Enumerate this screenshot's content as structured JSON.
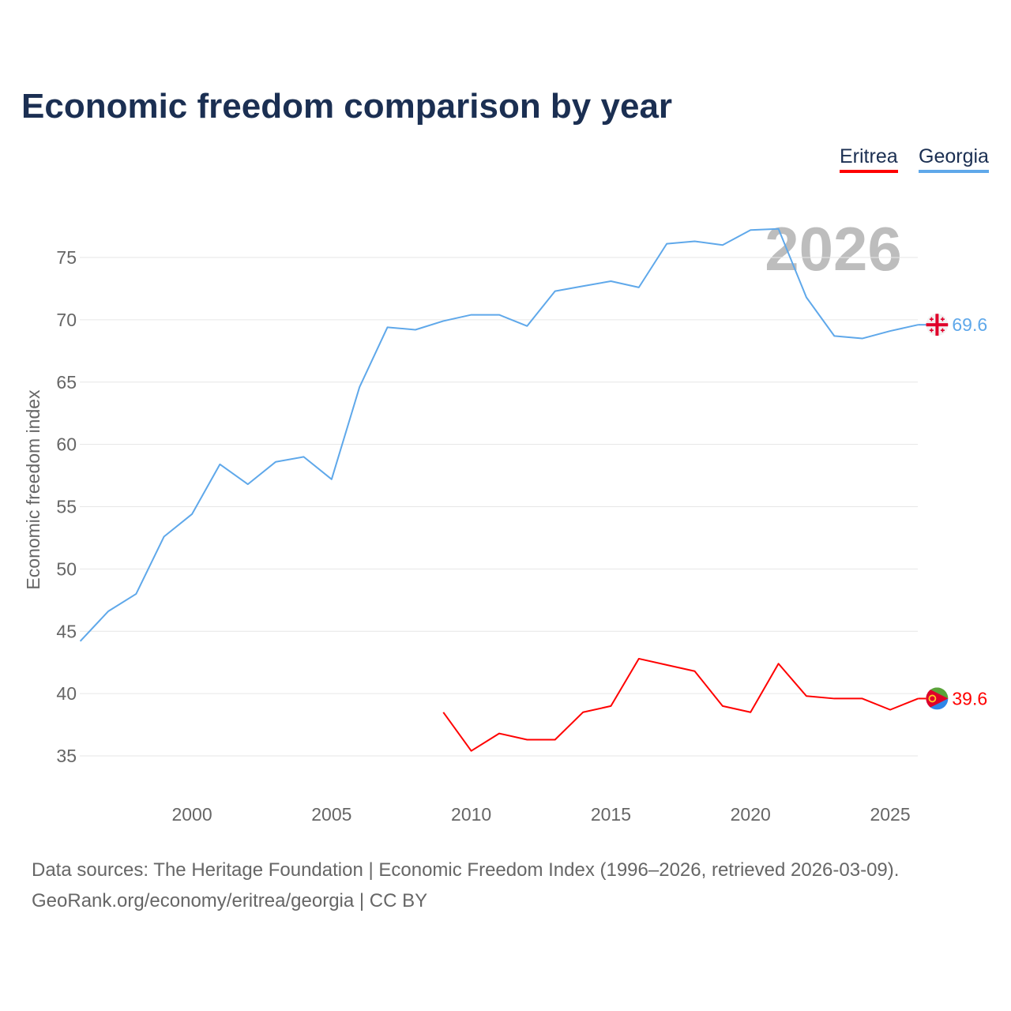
{
  "chart_data": {
    "type": "line",
    "title": "Economic freedom comparison by year",
    "ylabel": "Economic freedom index",
    "xlabel": "",
    "xlim": [
      1996,
      2026
    ],
    "ylim": [
      32,
      79
    ],
    "yticks": [
      35,
      40,
      45,
      50,
      55,
      60,
      65,
      70,
      75
    ],
    "xticks": [
      2000,
      2005,
      2010,
      2015,
      2020,
      2025
    ],
    "grid": true,
    "legend_position": "top-right",
    "watermark": "2026",
    "series": [
      {
        "name": "Eritrea",
        "color": "#ff0000",
        "end_label": "39.6",
        "flag": "eritrea-flag",
        "x": [
          2009,
          2010,
          2011,
          2012,
          2013,
          2014,
          2015,
          2016,
          2017,
          2018,
          2019,
          2020,
          2021,
          2022,
          2023,
          2024,
          2025,
          2026
        ],
        "values": [
          38.5,
          35.4,
          36.8,
          36.3,
          36.3,
          38.5,
          39.0,
          42.8,
          42.3,
          41.8,
          39.0,
          38.5,
          42.4,
          39.8,
          39.6,
          39.6,
          38.7,
          39.6
        ]
      },
      {
        "name": "Georgia",
        "color": "#5fa8ea",
        "end_label": "69.6",
        "flag": "georgia-flag",
        "x": [
          1996,
          1997,
          1998,
          1999,
          2000,
          2001,
          2002,
          2003,
          2004,
          2005,
          2006,
          2007,
          2008,
          2009,
          2010,
          2011,
          2012,
          2013,
          2014,
          2015,
          2016,
          2017,
          2018,
          2019,
          2020,
          2021,
          2022,
          2023,
          2024,
          2025,
          2026
        ],
        "values": [
          44.2,
          46.6,
          48.0,
          52.6,
          54.4,
          58.4,
          56.8,
          58.6,
          59.0,
          57.2,
          64.6,
          69.4,
          69.2,
          69.9,
          70.4,
          70.4,
          69.5,
          72.3,
          72.7,
          73.1,
          72.6,
          76.1,
          76.3,
          76.0,
          77.2,
          77.3,
          71.8,
          68.7,
          68.5,
          69.1,
          69.6
        ]
      }
    ]
  },
  "footer": {
    "line1": "Data sources: The Heritage Foundation | Economic Freedom Index (1996–2026, retrieved 2026-03-09).",
    "line2": "GeoRank.org/economy/eritrea/georgia | CC BY"
  }
}
